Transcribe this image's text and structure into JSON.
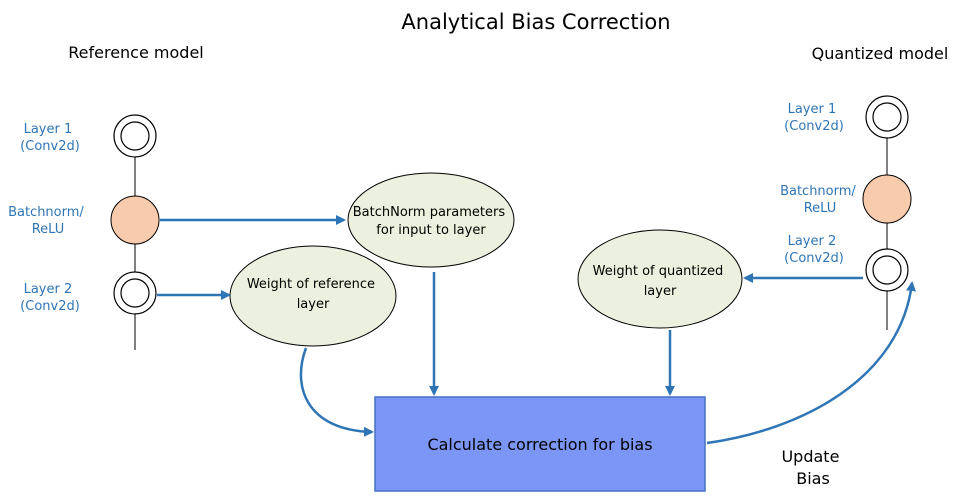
{
  "title": "Analytical Bias Correction",
  "reference_model": {
    "heading": "Reference model",
    "layer1": [
      "Layer 1",
      "(Conv2d)"
    ],
    "batchnorm": [
      "Batchnorm/",
      "ReLU"
    ],
    "layer2": [
      "Layer 2",
      "(Conv2d)"
    ]
  },
  "quantized_model": {
    "heading": "Quantized model",
    "layer1": [
      "Layer 1",
      "(Conv2d)"
    ],
    "batchnorm": [
      "Batchnorm/",
      "ReLU"
    ],
    "layer2": [
      "Layer 2",
      "(Conv2d)"
    ]
  },
  "nodes": {
    "batchnorm_params": [
      "BatchNorm parameters",
      "for input to layer"
    ],
    "weight_reference": [
      "Weight of reference",
      "layer"
    ],
    "weight_quantized": [
      "Weight of quantized",
      "layer"
    ]
  },
  "calculate_box": "Calculate correction for bias",
  "update_bias": [
    "Update",
    "Bias"
  ],
  "colors": {
    "label_blue": "#2e75b6",
    "arrow_blue": "#2e75b6",
    "node_fill": "#ebf1de",
    "batchnorm_fill": "#f8cbad",
    "box_fill": "#7b96f5",
    "box_stroke": "#4472c4"
  }
}
